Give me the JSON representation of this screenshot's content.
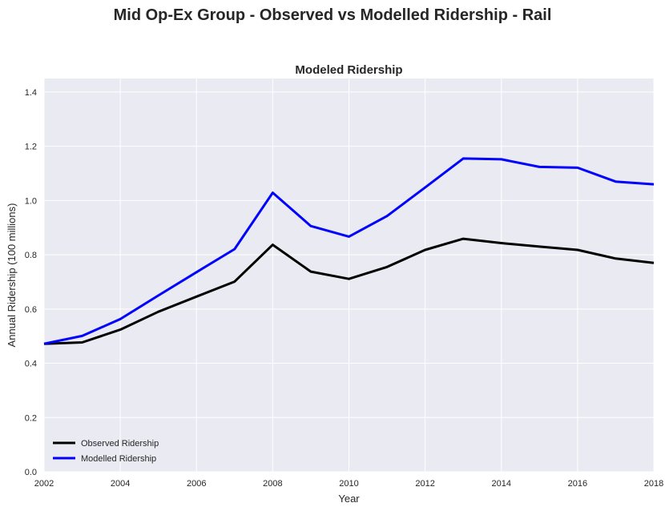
{
  "suptitle": "Mid Op-Ex Group - Observed vs Modelled Ridership - Rail",
  "chart_data": {
    "type": "line",
    "title": "Modeled Ridership",
    "xlabel": "Year",
    "ylabel": "Annual Ridership (100 millions)",
    "xlim": [
      2002,
      2018
    ],
    "ylim": [
      0,
      1.45
    ],
    "xticks": [
      "2002",
      "2004",
      "2006",
      "2008",
      "2010",
      "2012",
      "2014",
      "2016",
      "2018"
    ],
    "yticks": [
      "0.0",
      "0.2",
      "0.4",
      "0.6",
      "0.8",
      "1.0",
      "1.2",
      "1.4"
    ],
    "grid": true,
    "legend_position": "lower-left",
    "x": [
      2002,
      2003,
      2004,
      2005,
      2006,
      2007,
      2008,
      2009,
      2010,
      2011,
      2012,
      2013,
      2014,
      2015,
      2016,
      2017,
      2018
    ],
    "series": [
      {
        "name": "Observed Ridership",
        "color": "#000000",
        "values": [
          0.472,
          0.477,
          0.524,
          0.59,
          0.646,
          0.701,
          0.837,
          0.738,
          0.711,
          0.755,
          0.818,
          0.859,
          0.843,
          0.83,
          0.818,
          0.786,
          0.77
        ]
      },
      {
        "name": "Modelled Ridership",
        "color": "#0000ff",
        "values": [
          0.472,
          0.501,
          0.563,
          0.65,
          0.736,
          0.821,
          1.029,
          0.906,
          0.867,
          0.943,
          1.048,
          1.155,
          1.152,
          1.124,
          1.121,
          1.07,
          1.06
        ]
      }
    ]
  }
}
